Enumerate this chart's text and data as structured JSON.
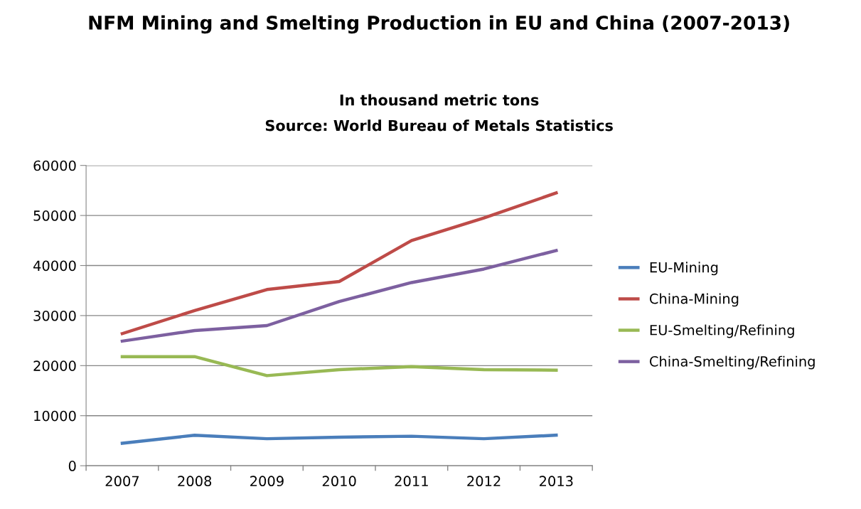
{
  "chart_data": {
    "type": "line",
    "title": "NFM Mining and Smelting Production in EU and China (2007-2013)",
    "subtitle": "In thousand metric tons",
    "annotations": [
      "Source: World Bureau of Metals Statistics"
    ],
    "categories": [
      "2007",
      "2008",
      "2009",
      "2010",
      "2011",
      "2012",
      "2013"
    ],
    "series": [
      {
        "name": "EU-Mining",
        "color": "#4a7ebb",
        "values": [
          4500,
          6100,
          5400,
          5700,
          5900,
          5400,
          6100
        ]
      },
      {
        "name": "China-Mining",
        "color": "#be4b48",
        "values": [
          26400,
          31000,
          35200,
          36800,
          45000,
          49500,
          54500
        ]
      },
      {
        "name": "EU-Smelting/Refining",
        "color": "#98b954",
        "values": [
          21800,
          21800,
          18000,
          19200,
          19800,
          19200,
          19100
        ]
      },
      {
        "name": "China-Smelting/Refining",
        "color": "#7d60a0",
        "values": [
          24900,
          27000,
          28000,
          32800,
          36600,
          39300,
          43000
        ]
      }
    ],
    "ylim": [
      0,
      60000
    ],
    "yticks": [
      0,
      10000,
      20000,
      30000,
      40000,
      50000,
      60000
    ],
    "grid": "y",
    "legend": "right",
    "marker": "none",
    "line_style": "solid"
  }
}
